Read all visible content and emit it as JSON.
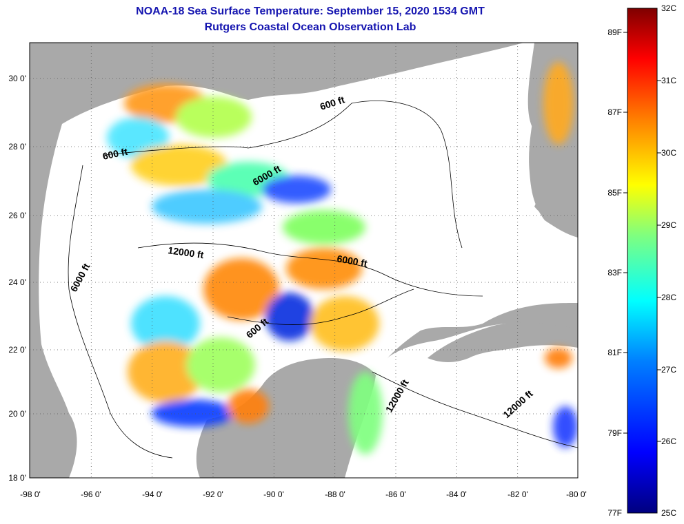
{
  "title": "NOAA-18 Sea Surface Temperature:  September 15, 2020 1534 GMT",
  "subtitle": "Rutgers Coastal Ocean Observation Lab",
  "lon_ticks": [
    "-98 0'",
    "-96 0'",
    "-94 0'",
    "-92 0'",
    "-90 0'",
    "-88 0'",
    "-86 0'",
    "-84 0'",
    "-82 0'",
    "-80 0'"
  ],
  "lat_ticks": [
    "30 0'",
    "28 0'",
    "26 0'",
    "24 0'",
    "22 0'",
    "20 0'",
    "18 0'"
  ],
  "contour_labels": [
    "600 ft",
    "600 ft",
    "6000 ft",
    "12000 ft",
    "6000 ft",
    "6000 ft",
    "600 ft",
    "12000 ft",
    "12000 ft"
  ],
  "colorbar": {
    "fahrenheit_labels": [
      "89F",
      "87F",
      "85F",
      "83F",
      "81F",
      "79F",
      "77F"
    ],
    "celsius_labels": [
      "32C",
      "31C",
      "30C",
      "29C",
      "28C",
      "27C",
      "26C",
      "25C"
    ],
    "colors": [
      "#00007f",
      "#0000ff",
      "#007fff",
      "#00ffff",
      "#7fff7f",
      "#ffff00",
      "#ff7f00",
      "#ff0000",
      "#7f0000"
    ]
  },
  "colors": {
    "land": "#a9a9a9",
    "no_data": "#ffffff",
    "title": "#1515b0"
  }
}
